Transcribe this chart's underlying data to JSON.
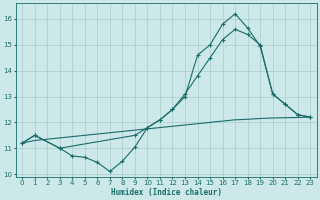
{
  "xlabel": "Humidex (Indice chaleur)",
  "bg_color": "#cce8e8",
  "grid_color": "#aacccc",
  "line_color": "#1a6b6b",
  "xlim": [
    -0.5,
    23.5
  ],
  "ylim": [
    9.9,
    16.6
  ],
  "yticks": [
    10,
    11,
    12,
    13,
    14,
    15,
    16
  ],
  "xticks": [
    0,
    1,
    2,
    3,
    4,
    5,
    6,
    7,
    8,
    9,
    10,
    11,
    12,
    13,
    14,
    15,
    16,
    17,
    18,
    19,
    20,
    21,
    22,
    23
  ],
  "line1_x": [
    0,
    1,
    3,
    4,
    5,
    6,
    7,
    8,
    9,
    10,
    11,
    12,
    13,
    14,
    15,
    16,
    17,
    18,
    19,
    20,
    21,
    22,
    23
  ],
  "line1_y": [
    11.2,
    11.5,
    11.0,
    10.7,
    10.65,
    10.45,
    10.1,
    10.5,
    11.05,
    11.8,
    12.1,
    12.5,
    13.0,
    14.6,
    15.0,
    15.8,
    16.2,
    15.65,
    14.95,
    13.1,
    12.7,
    12.3,
    12.2
  ],
  "line2_x": [
    0,
    1,
    3,
    9,
    10,
    11,
    12,
    13,
    14,
    15,
    16,
    17,
    18,
    19,
    20,
    21,
    22,
    23
  ],
  "line2_y": [
    11.2,
    11.5,
    11.0,
    11.5,
    11.8,
    12.1,
    12.5,
    13.1,
    13.8,
    14.5,
    15.2,
    15.6,
    15.4,
    15.0,
    13.1,
    12.7,
    12.3,
    12.2
  ],
  "line3_x": [
    0,
    1,
    2,
    3,
    4,
    5,
    6,
    7,
    8,
    9,
    10,
    11,
    12,
    13,
    14,
    15,
    16,
    17,
    18,
    19,
    20,
    21,
    22,
    23
  ],
  "line3_y": [
    11.2,
    11.3,
    11.35,
    11.4,
    11.45,
    11.5,
    11.55,
    11.6,
    11.65,
    11.7,
    11.75,
    11.8,
    11.85,
    11.9,
    11.95,
    12.0,
    12.05,
    12.1,
    12.12,
    12.15,
    12.17,
    12.18,
    12.19,
    12.2
  ]
}
